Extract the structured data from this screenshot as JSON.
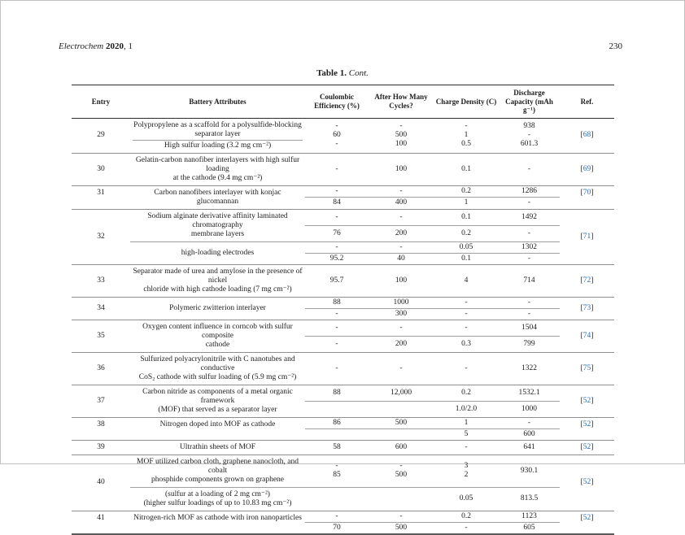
{
  "page_header": {
    "journal": "Electrochem",
    "year": "2020",
    "issue": ", 1",
    "page_number": "230"
  },
  "caption": {
    "label": "Table 1.",
    "cont": "Cont."
  },
  "table": {
    "columns": [
      "Entry",
      "Battery Attributes",
      "Coulombic Efficiency (%)",
      "After How Many Cycles?",
      "Charge Density (C)",
      "Discharge Capacity (mAh g⁻¹)",
      "Ref."
    ],
    "rows": [
      {
        "entry": "29",
        "ref": "68",
        "sections": [
          {
            "attr_parts": [
              [
                "Polypropylene as a scaffold for a polysulfide-blocking",
                "separator layer"
              ],
              [
                "High sulfur loading (3.2 mg cm⁻²)"
              ]
            ],
            "subrows": [
              {
                "ce": [
                  "-",
                  "60",
                  "-"
                ],
                "cycles": [
                  "-",
                  "500",
                  "100"
                ],
                "charge": [
                  "-",
                  "1",
                  "0.5"
                ],
                "discharge": [
                  "938",
                  "-",
                  "601.3"
                ]
              }
            ]
          }
        ]
      },
      {
        "entry": "30",
        "ref": "69",
        "sections": [
          {
            "attr_parts": [
              [
                "Gelatin-carbon nanofiber interlayers with high sulfur loading",
                "at the cathode (9.4 mg cm⁻²)"
              ]
            ],
            "subrows": [
              {
                "ce": [
                  "-"
                ],
                "cycles": [
                  "100"
                ],
                "charge": [
                  "0.1"
                ],
                "discharge": [
                  "-"
                ]
              }
            ]
          }
        ]
      },
      {
        "entry": "31",
        "ref": "70",
        "valign": "top",
        "sections": [
          {
            "attr_parts": [
              [
                "Carbon nanofibers interlayer with konjac glucomannan"
              ]
            ],
            "subrows": [
              {
                "ce": [
                  "-"
                ],
                "cycles": [
                  "-"
                ],
                "charge": [
                  "0.2"
                ],
                "discharge": [
                  "1286"
                ]
              },
              {
                "ce": [
                  "84"
                ],
                "cycles": [
                  "400"
                ],
                "charge": [
                  "1"
                ],
                "discharge": [
                  "-"
                ]
              }
            ]
          }
        ]
      },
      {
        "entry": "32",
        "ref": "71",
        "sections": [
          {
            "attr_parts": [
              [
                "Sodium alginate derivative affinity laminated chromatography",
                "membrane layers"
              ]
            ],
            "subrows": [
              {
                "ce": [
                  "-"
                ],
                "cycles": [
                  "-"
                ],
                "charge": [
                  "0.1"
                ],
                "discharge": [
                  "1492"
                ]
              },
              {
                "ce": [
                  "76"
                ],
                "cycles": [
                  "200"
                ],
                "charge": [
                  "0.2"
                ],
                "discharge": [
                  "-"
                ]
              }
            ]
          },
          {
            "attr_parts": [
              [
                "high-loading electrodes"
              ]
            ],
            "subrows": [
              {
                "ce": [
                  "-"
                ],
                "cycles": [
                  "-"
                ],
                "charge": [
                  "0.05"
                ],
                "discharge": [
                  "1302"
                ]
              },
              {
                "ce": [
                  "95.2"
                ],
                "cycles": [
                  "40"
                ],
                "charge": [
                  "0.1"
                ],
                "discharge": [
                  "-"
                ]
              }
            ]
          }
        ]
      },
      {
        "entry": "33",
        "ref": "72",
        "sections": [
          {
            "attr_parts": [
              [
                "Separator made of urea and amylose in the presence of nickel",
                "chloride with high cathode loading (7 mg cm⁻²)"
              ]
            ],
            "subrows": [
              {
                "ce": [
                  "95.7"
                ],
                "cycles": [
                  "100"
                ],
                "charge": [
                  "4"
                ],
                "discharge": [
                  "714"
                ]
              }
            ]
          }
        ]
      },
      {
        "entry": "34",
        "ref": "73",
        "sections": [
          {
            "attr_parts": [
              [
                "Polymeric zwitterion interlayer"
              ]
            ],
            "subrows": [
              {
                "ce": [
                  "88"
                ],
                "cycles": [
                  "1000"
                ],
                "charge": [
                  "-"
                ],
                "discharge": [
                  "-"
                ]
              },
              {
                "ce": [
                  "-"
                ],
                "cycles": [
                  "300"
                ],
                "charge": [
                  "-"
                ],
                "discharge": [
                  "-"
                ]
              }
            ]
          }
        ]
      },
      {
        "entry": "35",
        "ref": "74",
        "sections": [
          {
            "attr_parts": [
              [
                "Oxygen content influence in corncob with sulfur composite",
                "cathode"
              ]
            ],
            "subrows": [
              {
                "ce": [
                  "-"
                ],
                "cycles": [
                  "-"
                ],
                "charge": [
                  "-"
                ],
                "discharge": [
                  "1504"
                ]
              },
              {
                "ce": [
                  "-"
                ],
                "cycles": [
                  "200"
                ],
                "charge": [
                  "0.3"
                ],
                "discharge": [
                  "799"
                ]
              }
            ]
          }
        ]
      },
      {
        "entry": "36",
        "ref": "75",
        "sections": [
          {
            "attr_parts": [
              [
                "Sulfurized polyacrylonitrile with C nanotubes and conductive",
                "CoS₂ cathode with sulfur loading of (5.9 mg cm⁻²)"
              ]
            ],
            "subrows": [
              {
                "ce": [
                  "-"
                ],
                "cycles": [
                  "-"
                ],
                "charge": [
                  "-"
                ],
                "discharge": [
                  "1322"
                ]
              }
            ]
          }
        ]
      },
      {
        "entry": "37",
        "ref": "52",
        "sections": [
          {
            "attr_parts": [
              [
                "Carbon nitride as components of a metal organic framework",
                "(MOF) that served as a separator layer"
              ]
            ],
            "subrows": [
              {
                "ce": [
                  "88"
                ],
                "cycles": [
                  "12,000"
                ],
                "charge": [
                  "0.2"
                ],
                "discharge": [
                  "1532.1"
                ]
              },
              {
                "ce": [
                  ""
                ],
                "cycles": [
                  ""
                ],
                "charge": [
                  "1.0/2.0"
                ],
                "discharge": [
                  "1000"
                ]
              }
            ]
          }
        ]
      },
      {
        "entry": "38",
        "ref": "52",
        "valign": "top",
        "sections": [
          {
            "attr_parts": [
              [
                "Nitrogen doped into MOF as cathode"
              ]
            ],
            "subrows": [
              {
                "ce": [
                  "86"
                ],
                "cycles": [
                  "500"
                ],
                "charge": [
                  "1"
                ],
                "discharge": [
                  "-"
                ]
              },
              {
                "ce": [
                  ""
                ],
                "cycles": [
                  ""
                ],
                "charge": [
                  "5"
                ],
                "discharge": [
                  "600"
                ]
              }
            ]
          }
        ]
      },
      {
        "entry": "39",
        "ref": "52",
        "sections": [
          {
            "attr_parts": [
              [
                "Ultrathin sheets of MOF"
              ]
            ],
            "subrows": [
              {
                "ce": [
                  "58"
                ],
                "cycles": [
                  "600"
                ],
                "charge": [
                  "-"
                ],
                "discharge": [
                  "641"
                ]
              }
            ]
          }
        ]
      },
      {
        "entry": "40",
        "ref": "52",
        "sections": [
          {
            "attr_parts": [
              [
                "MOF utilized carbon cloth, graphene nanocloth, and cobalt",
                "phosphide components grown on graphene"
              ]
            ],
            "subrows": [
              {
                "ce": [
                  "-",
                  "85"
                ],
                "cycles": [
                  "-",
                  "500"
                ],
                "charge": [
                  "3",
                  "2"
                ],
                "discharge": [
                  "930.1"
                ]
              }
            ]
          },
          {
            "attr_parts": [
              [
                "(sulfur at a loading of 2 mg cm⁻²)",
                "(higher sulfur loadings of up to 10.83 mg cm⁻²)"
              ]
            ],
            "subrows": [
              {
                "ce": [
                  ""
                ],
                "cycles": [
                  ""
                ],
                "charge": [
                  "0.05"
                ],
                "discharge": [
                  "813.5"
                ]
              }
            ]
          }
        ]
      },
      {
        "entry": "41",
        "ref": "52",
        "valign": "top",
        "sections": [
          {
            "attr_parts": [
              [
                "Nitrogen-rich MOF as cathode with iron nanoparticles"
              ]
            ],
            "subrows": [
              {
                "ce": [
                  "-"
                ],
                "cycles": [
                  "-"
                ],
                "charge": [
                  "0.2"
                ],
                "discharge": [
                  "1123"
                ]
              },
              {
                "ce": [
                  "70"
                ],
                "cycles": [
                  "500"
                ],
                "charge": [
                  "-"
                ],
                "discharge": [
                  "605"
                ]
              }
            ]
          }
        ]
      }
    ]
  }
}
